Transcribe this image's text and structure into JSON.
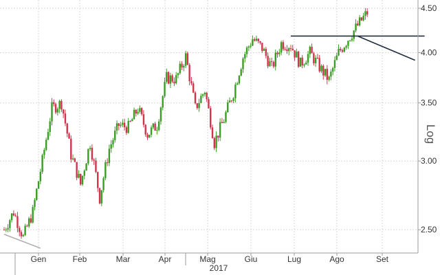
{
  "chart_data": {
    "type": "candlestick",
    "scale": "log",
    "grid": true,
    "ylim": [
      2.35,
      4.6
    ],
    "y_ticks": [
      {
        "value": 2.5,
        "label": "2.50"
      },
      {
        "value": 3.0,
        "label": "3.00"
      },
      {
        "value": 3.5,
        "label": "3.50"
      },
      {
        "value": 4.0,
        "label": "4.00"
      },
      {
        "value": 4.5,
        "label": "4.50"
      }
    ],
    "y_axis_label": "Log",
    "x_year_label": "2017",
    "x_month_labels": [
      "Gen",
      "Feb",
      "Mar",
      "Apr",
      "Mag",
      "Giu",
      "Lug",
      "Ago",
      "Set"
    ],
    "up_color": "#3a9d23",
    "down_color": "#d0344b",
    "grid_color": "#d9d9d9",
    "trendline_color": "#1f2d3d",
    "support_line_color": "#b0b0b0",
    "series": [
      {
        "name": "weekly_path",
        "values": [
          2.5,
          2.62,
          2.45,
          2.62,
          3.0,
          3.45,
          3.5,
          3.05,
          2.82,
          3.15,
          2.72,
          3.1,
          3.3,
          3.28,
          3.45,
          3.22,
          3.3,
          3.74,
          3.73,
          3.96,
          3.45,
          3.62,
          3.15,
          3.35,
          3.6,
          3.95,
          4.15,
          4.05,
          3.84,
          4.1,
          4.08,
          3.88,
          4.0,
          3.85,
          3.72,
          4.0,
          4.15,
          4.3,
          4.45
        ]
      }
    ],
    "trendlines": [
      {
        "kind": "horizontal",
        "value": 4.18,
        "from_week": 30,
        "to_week": 44
      },
      {
        "kind": "diagonal",
        "from_week": 37,
        "from_value": 4.18,
        "to_week": 43,
        "to_value": 3.92
      },
      {
        "kind": "diagonal",
        "from_week": 0,
        "from_value": 2.47,
        "to_week": 2,
        "to_value": 2.38
      }
    ]
  }
}
